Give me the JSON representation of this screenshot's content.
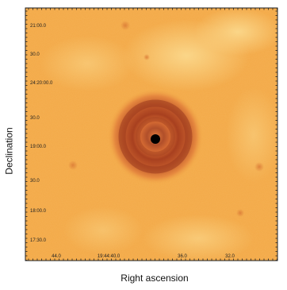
{
  "image": {
    "description_free": true,
    "y_axis_label": "Declination",
    "x_axis_label": "Right ascension",
    "y_ticks": [
      "21:00.0",
      "30.0",
      "24:20:00.0",
      "30.0",
      "19:00.0",
      "30.0",
      "18:00.0",
      "17:30.0"
    ],
    "x_ticks": [
      "44.0",
      "19:44:40.0",
      "36.0",
      "32.0"
    ],
    "colors": {
      "background": "#f3a947",
      "light_patch": "#f8cf7d",
      "ring_dark": "#9a3a1d",
      "ring_mid": "#c86232",
      "star_core": "#000000",
      "frame": "#222222"
    }
  }
}
